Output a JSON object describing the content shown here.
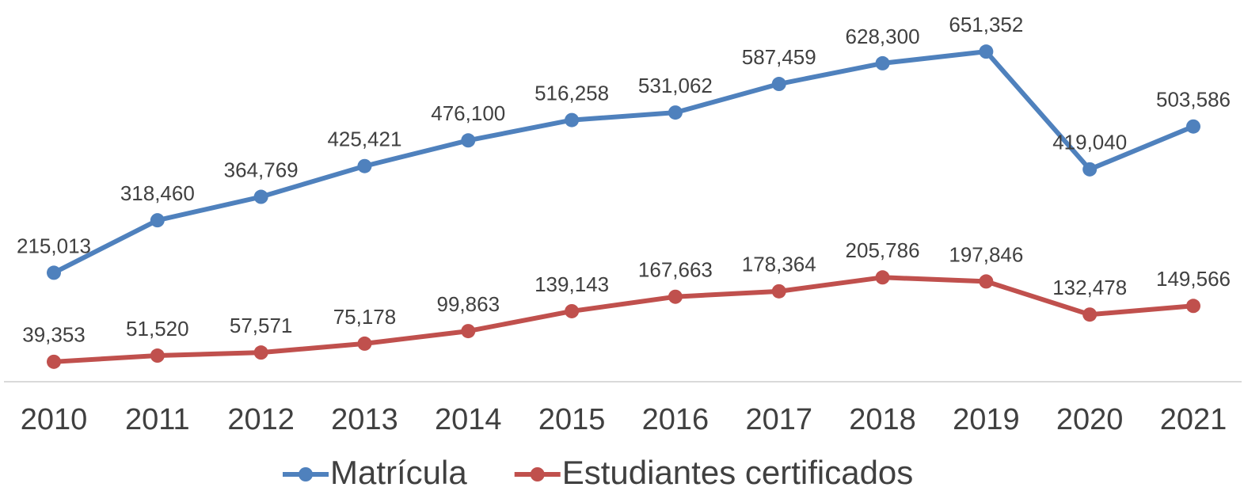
{
  "chart_data": {
    "type": "line",
    "categories": [
      "2010",
      "2011",
      "2012",
      "2013",
      "2014",
      "2015",
      "2016",
      "2017",
      "2018",
      "2019",
      "2020",
      "2021"
    ],
    "series": [
      {
        "name": "Matrícula",
        "color": "#4f81bd",
        "values": [
          215013,
          318460,
          364769,
          425421,
          476100,
          516258,
          531062,
          587459,
          628300,
          651352,
          419040,
          503586
        ]
      },
      {
        "name": "Estudiantes certificados",
        "color": "#c0504d",
        "values": [
          39353,
          51520,
          57571,
          75178,
          99863,
          139143,
          167663,
          178364,
          205786,
          197846,
          132478,
          149566
        ]
      }
    ],
    "ylim": [
      0,
      750000
    ],
    "legend": "bottom"
  }
}
